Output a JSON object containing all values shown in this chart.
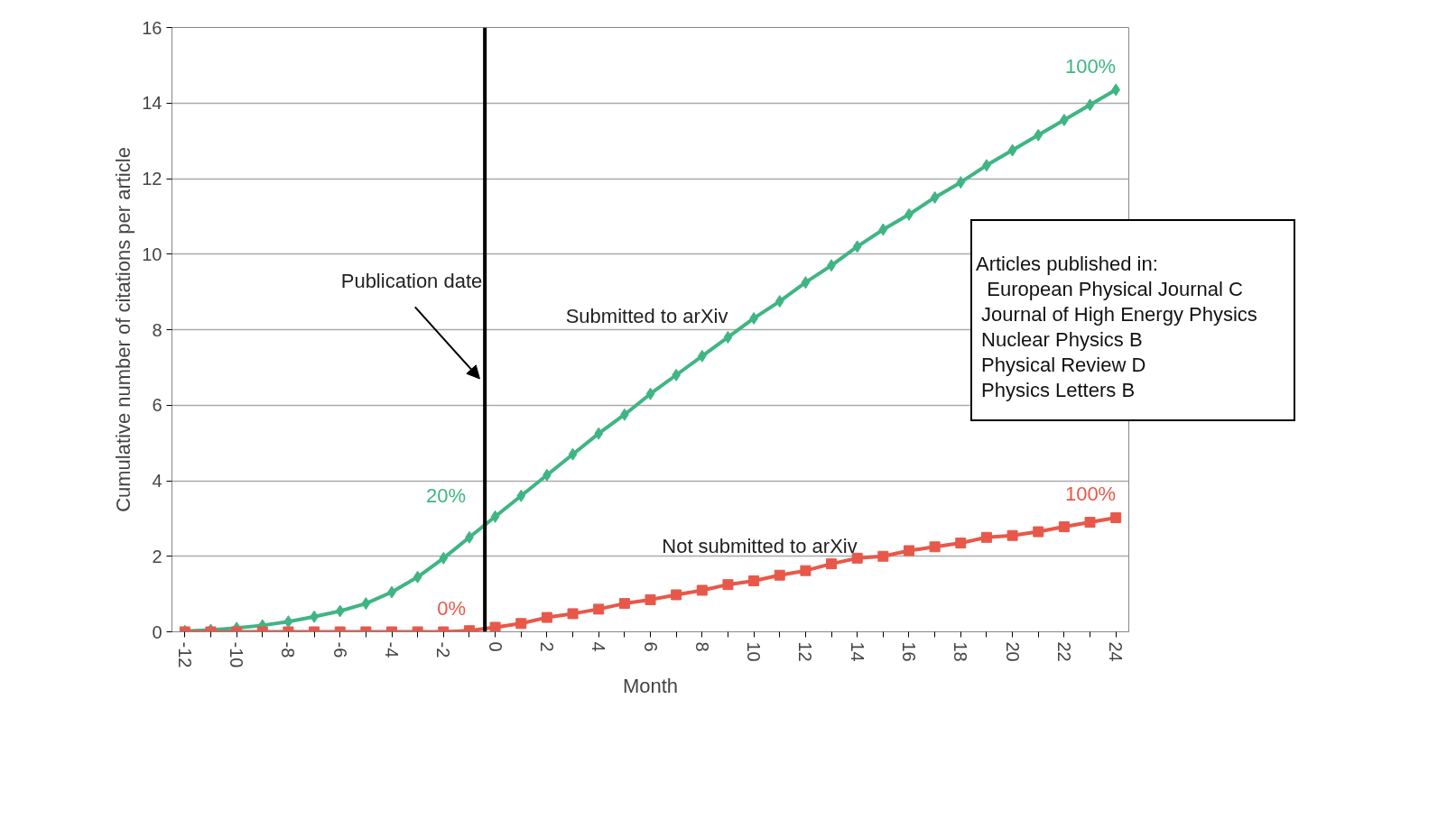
{
  "chart_data": {
    "type": "line",
    "xlabel": "Month",
    "ylabel": "Cumulative number of citations per article",
    "x": [
      -12,
      -11,
      -10,
      -9,
      -8,
      -7,
      -6,
      -5,
      -4,
      -3,
      -2,
      -1,
      0,
      1,
      2,
      3,
      4,
      5,
      6,
      7,
      8,
      9,
      10,
      11,
      12,
      13,
      14,
      15,
      16,
      17,
      18,
      19,
      20,
      21,
      22,
      23,
      24
    ],
    "series": [
      {
        "name": "Submitted to arXiv",
        "color": "#3fb583",
        "marker": "diamond",
        "values": [
          0.02,
          0.05,
          0.1,
          0.17,
          0.27,
          0.4,
          0.55,
          0.75,
          1.05,
          1.45,
          1.95,
          2.5,
          3.05,
          3.6,
          4.15,
          4.7,
          5.25,
          5.75,
          6.3,
          6.8,
          7.3,
          7.8,
          8.3,
          8.75,
          9.25,
          9.7,
          10.2,
          10.65,
          11.05,
          11.5,
          11.9,
          12.35,
          12.75,
          13.15,
          13.55,
          13.95,
          14.35
        ]
      },
      {
        "name": "Not submitted to arXiv",
        "color": "#e8584a",
        "marker": "square",
        "values": [
          0,
          0,
          0,
          0,
          0,
          0,
          0,
          0,
          0,
          0,
          0,
          0.03,
          0.12,
          0.22,
          0.38,
          0.48,
          0.6,
          0.75,
          0.85,
          0.98,
          1.1,
          1.25,
          1.35,
          1.5,
          1.62,
          1.8,
          1.95,
          2.0,
          2.15,
          2.25,
          2.35,
          2.5,
          2.55,
          2.65,
          2.78,
          2.9,
          3.02
        ]
      }
    ],
    "xlim": [
      -12.5,
      24.5
    ],
    "ylim": [
      0,
      16
    ],
    "xticks": [
      -12,
      {
        "value": -11,
        "label": null
      },
      -10,
      {
        "value": -9,
        "label": null
      },
      -8,
      {
        "value": -7,
        "label": null
      },
      -6,
      {
        "value": -5,
        "label": null
      },
      -4,
      {
        "value": -3,
        "label": null
      },
      -2,
      {
        "value": -1,
        "label": null
      },
      0,
      {
        "value": 1,
        "label": null
      },
      2,
      {
        "value": 3,
        "label": null
      },
      4,
      {
        "value": 5,
        "label": null
      },
      6,
      {
        "value": 7,
        "label": null
      },
      8,
      {
        "value": 9,
        "label": null
      },
      10,
      {
        "value": 11,
        "label": null
      },
      12,
      {
        "value": 13,
        "label": null
      },
      14,
      {
        "value": 15,
        "label": null
      },
      16,
      {
        "value": 17,
        "label": null
      },
      18,
      {
        "value": 19,
        "label": null
      },
      20,
      {
        "value": 21,
        "label": null
      },
      22,
      {
        "value": 23,
        "label": null
      },
      24
    ],
    "yticks": [
      0,
      2,
      4,
      6,
      8,
      10,
      12,
      14,
      16
    ],
    "grid": "y",
    "legend": false,
    "line_style": "solid",
    "ref_lines": [
      {
        "axis": "x",
        "value": -0.4,
        "label": "Publication date",
        "color": "#000000"
      }
    ],
    "annotations": [
      "100%",
      "20%",
      "0%",
      "100%",
      "Articles published in:",
      "  European Physical Journal C",
      " Journal of High Energy Physics",
      " Nuclear Physics B",
      " Physical Review D",
      " Physics Letters B"
    ]
  }
}
